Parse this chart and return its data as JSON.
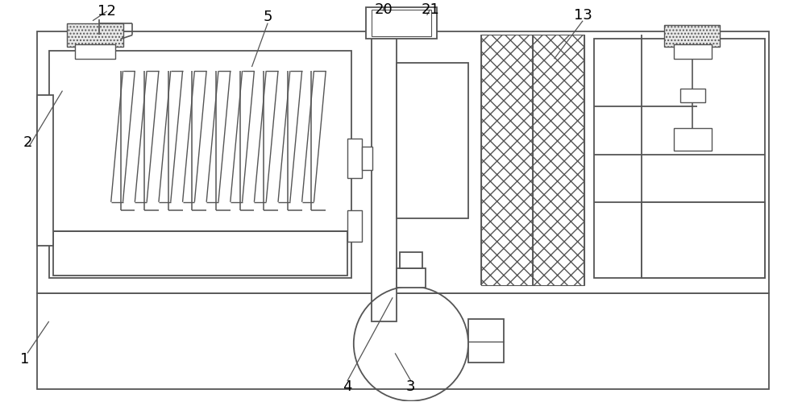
{
  "bg_color": "#ffffff",
  "line_color": "#555555",
  "lw": 1.3,
  "fig_width": 10.0,
  "fig_height": 4.99
}
